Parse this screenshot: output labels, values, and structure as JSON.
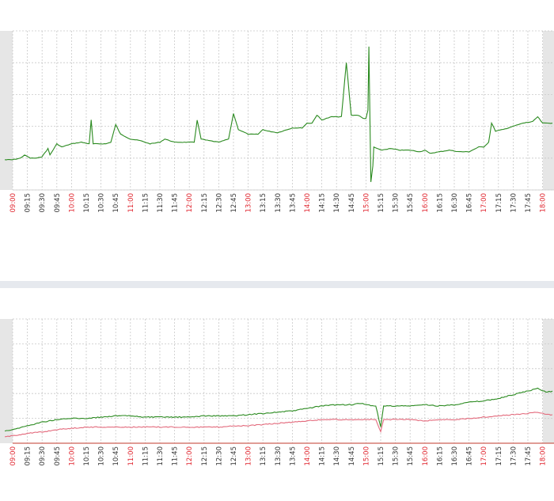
{
  "colors": {
    "grid": "#c8c8c8",
    "axis_edge": "#e6e6e6",
    "hour_label": "#e0262f",
    "minor_label": "#333333",
    "series_green": "#2a8a1f",
    "series_red": "#e36a7c",
    "separator": "#e6e9ee"
  },
  "x_ticks": [
    "09:00",
    "09:15",
    "09:30",
    "09:45",
    "10:00",
    "10:15",
    "10:30",
    "10:45",
    "11:00",
    "11:15",
    "11:30",
    "11:45",
    "12:00",
    "12:15",
    "12:30",
    "12:45",
    "13:00",
    "13:15",
    "13:30",
    "13:45",
    "14:00",
    "14:15",
    "14:30",
    "14:45",
    "15:00",
    "15:15",
    "15:30",
    "15:45",
    "16:00",
    "16:15",
    "16:30",
    "16:45",
    "17:00",
    "17:15",
    "17:30",
    "17:45",
    "18:00"
  ],
  "chart_data": [
    {
      "type": "line",
      "x_range": [
        "09:00",
        "18:10"
      ],
      "ylim": [
        0,
        100
      ],
      "grid": true,
      "series": [
        {
          "color": "#2a8a1f",
          "points": [
            [
              "08:52",
              19
            ],
            [
              "09:00",
              19
            ],
            [
              "09:08",
              20
            ],
            [
              "09:12",
              22
            ],
            [
              "09:18",
              20
            ],
            [
              "09:25",
              20
            ],
            [
              "09:30",
              21
            ],
            [
              "09:36",
              26
            ],
            [
              "09:38",
              22
            ],
            [
              "09:45",
              29
            ],
            [
              "09:50",
              27
            ],
            [
              "10:00",
              29
            ],
            [
              "10:10",
              30
            ],
            [
              "10:18",
              29
            ],
            [
              "10:20",
              44
            ],
            [
              "10:22",
              29
            ],
            [
              "10:35",
              29
            ],
            [
              "10:40",
              30
            ],
            [
              "10:45",
              41
            ],
            [
              "10:50",
              35
            ],
            [
              "11:00",
              32
            ],
            [
              "11:10",
              31
            ],
            [
              "11:20",
              29
            ],
            [
              "11:30",
              30
            ],
            [
              "11:35",
              32
            ],
            [
              "11:45",
              30
            ],
            [
              "12:00",
              30
            ],
            [
              "12:05",
              30
            ],
            [
              "12:08",
              44
            ],
            [
              "12:12",
              32
            ],
            [
              "12:20",
              31
            ],
            [
              "12:30",
              30
            ],
            [
              "12:40",
              32
            ],
            [
              "12:45",
              48
            ],
            [
              "12:50",
              38
            ],
            [
              "13:00",
              35
            ],
            [
              "13:10",
              35
            ],
            [
              "13:15",
              38
            ],
            [
              "13:20",
              37
            ],
            [
              "13:30",
              36
            ],
            [
              "13:45",
              39
            ],
            [
              "13:55",
              39
            ],
            [
              "14:00",
              42
            ],
            [
              "14:05",
              42
            ],
            [
              "14:10",
              47
            ],
            [
              "14:15",
              44
            ],
            [
              "14:25",
              46
            ],
            [
              "14:35",
              46
            ],
            [
              "14:40",
              80
            ],
            [
              "14:45",
              47
            ],
            [
              "14:52",
              47
            ],
            [
              "14:57",
              45
            ],
            [
              "15:00",
              45
            ],
            [
              "15:02",
              50
            ],
            [
              "15:03",
              90
            ],
            [
              "15:05",
              5
            ],
            [
              "15:07",
              15
            ],
            [
              "15:08",
              27
            ],
            [
              "15:15",
              25
            ],
            [
              "15:25",
              26
            ],
            [
              "15:35",
              25
            ],
            [
              "15:45",
              25
            ],
            [
              "15:55",
              24
            ],
            [
              "16:00",
              25
            ],
            [
              "16:05",
              23
            ],
            [
              "16:15",
              24
            ],
            [
              "16:25",
              25
            ],
            [
              "16:35",
              24
            ],
            [
              "16:45",
              24
            ],
            [
              "16:55",
              27
            ],
            [
              "17:00",
              27
            ],
            [
              "17:05",
              30
            ],
            [
              "17:08",
              42
            ],
            [
              "17:12",
              37
            ],
            [
              "17:20",
              38
            ],
            [
              "17:30",
              40
            ],
            [
              "17:40",
              42
            ],
            [
              "17:50",
              43
            ],
            [
              "17:55",
              46
            ],
            [
              "18:00",
              42
            ],
            [
              "18:05",
              42
            ],
            [
              "18:10",
              42
            ]
          ]
        }
      ]
    },
    {
      "type": "line",
      "x_range": [
        "09:00",
        "18:10"
      ],
      "ylim": [
        0,
        100
      ],
      "grid": true,
      "series": [
        {
          "color": "#2a8a1f",
          "points": [
            [
              "08:52",
              10
            ],
            [
              "09:00",
              11
            ],
            [
              "09:15",
              14
            ],
            [
              "09:30",
              17
            ],
            [
              "09:45",
              19
            ],
            [
              "10:00",
              20
            ],
            [
              "10:15",
              20
            ],
            [
              "10:30",
              21
            ],
            [
              "10:45",
              22
            ],
            [
              "11:00",
              22
            ],
            [
              "11:15",
              21
            ],
            [
              "11:30",
              21
            ],
            [
              "11:45",
              21
            ],
            [
              "12:00",
              21
            ],
            [
              "12:15",
              22
            ],
            [
              "12:30",
              22
            ],
            [
              "12:45",
              22
            ],
            [
              "13:00",
              23
            ],
            [
              "13:15",
              24
            ],
            [
              "13:30",
              25
            ],
            [
              "13:45",
              26
            ],
            [
              "14:00",
              28
            ],
            [
              "14:15",
              30
            ],
            [
              "14:30",
              31
            ],
            [
              "14:45",
              31
            ],
            [
              "14:55",
              32
            ],
            [
              "15:00",
              31
            ],
            [
              "15:10",
              30
            ],
            [
              "15:15",
              13
            ],
            [
              "15:18",
              30
            ],
            [
              "15:30",
              30
            ],
            [
              "15:45",
              30
            ],
            [
              "16:00",
              31
            ],
            [
              "16:15",
              30
            ],
            [
              "16:30",
              31
            ],
            [
              "16:45",
              33
            ],
            [
              "17:00",
              34
            ],
            [
              "17:15",
              36
            ],
            [
              "17:30",
              39
            ],
            [
              "17:45",
              42
            ],
            [
              "17:55",
              44
            ],
            [
              "18:05",
              41
            ],
            [
              "18:10",
              42
            ]
          ]
        },
        {
          "color": "#e36a7c",
          "points": [
            [
              "08:52",
              5
            ],
            [
              "09:00",
              6
            ],
            [
              "09:15",
              8
            ],
            [
              "09:30",
              9
            ],
            [
              "09:45",
              11
            ],
            [
              "10:00",
              12
            ],
            [
              "10:15",
              13
            ],
            [
              "10:30",
              13
            ],
            [
              "10:45",
              13
            ],
            [
              "11:00",
              13
            ],
            [
              "11:15",
              13
            ],
            [
              "11:30",
              13
            ],
            [
              "11:45",
              13
            ],
            [
              "12:00",
              13
            ],
            [
              "12:15",
              13
            ],
            [
              "12:30",
              13
            ],
            [
              "12:45",
              14
            ],
            [
              "13:00",
              14
            ],
            [
              "13:15",
              15
            ],
            [
              "13:30",
              16
            ],
            [
              "13:45",
              17
            ],
            [
              "14:00",
              18
            ],
            [
              "14:15",
              19
            ],
            [
              "14:30",
              19
            ],
            [
              "14:45",
              19
            ],
            [
              "15:00",
              19
            ],
            [
              "15:10",
              19
            ],
            [
              "15:15",
              9
            ],
            [
              "15:18",
              19
            ],
            [
              "15:30",
              19
            ],
            [
              "15:45",
              19
            ],
            [
              "16:00",
              18
            ],
            [
              "16:15",
              19
            ],
            [
              "16:30",
              19
            ],
            [
              "16:45",
              20
            ],
            [
              "17:00",
              21
            ],
            [
              "17:15",
              22
            ],
            [
              "17:30",
              23
            ],
            [
              "17:45",
              24
            ],
            [
              "17:55",
              25
            ],
            [
              "18:05",
              23
            ],
            [
              "18:10",
              23
            ]
          ]
        }
      ]
    }
  ]
}
